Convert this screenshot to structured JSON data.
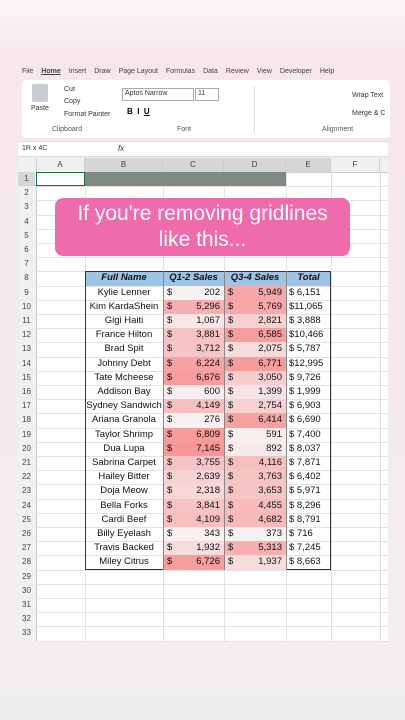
{
  "tabs": [
    "File",
    "Home",
    "Insert",
    "Draw",
    "Page Layout",
    "Formulas",
    "Data",
    "Review",
    "View",
    "Developer",
    "Help"
  ],
  "ribbon": {
    "paste": "Paste",
    "cut": "Cut",
    "copy": "Copy",
    "format_painter": "Format Painter",
    "clipboard": "Clipboard",
    "font_name": "Aptos Narrow",
    "font_size": "11",
    "font": "Font",
    "wrap_text": "Wrap Text",
    "merge": "Merge & C",
    "alignment": "Alignment"
  },
  "name_box": "1R x 4C",
  "fx": "fx",
  "columns": [
    "A",
    "B",
    "C",
    "D",
    "E",
    "F"
  ],
  "row_numbers": [
    1,
    2,
    3,
    4,
    5,
    6,
    7,
    8,
    9,
    10,
    11,
    12,
    13,
    14,
    15,
    16,
    17,
    18,
    19,
    20,
    21,
    22,
    23,
    24,
    25,
    26,
    27,
    28,
    29,
    30,
    31,
    32,
    33
  ],
  "overlay": {
    "lines": [
      "If you're removing gridlines",
      "like this..."
    ]
  },
  "table": {
    "header": [
      "Full Name",
      "Q1-2 Sales",
      "Q3-4 Sales",
      "Total"
    ],
    "currency": "$",
    "rows": [
      [
        "Kylie Lenner",
        "202",
        "5,949",
        "$ 6,151"
      ],
      [
        "Kim KardaShein",
        "5,296",
        "5,769",
        "$11,065"
      ],
      [
        "Gigi Haiti",
        "1,067",
        "2,821",
        "$ 3,888"
      ],
      [
        "France Hilton",
        "3,881",
        "6,585",
        "$10,466"
      ],
      [
        "Brad Spit",
        "3,712",
        "2,075",
        "$ 5,787"
      ],
      [
        "Johnny Debt",
        "6,224",
        "6,771",
        "$12,995"
      ],
      [
        "Tate Mcheese",
        "6,676",
        "3,050",
        "$ 9,726"
      ],
      [
        "Addison Bay",
        "600",
        "1,399",
        "$ 1,999"
      ],
      [
        "Sydney Sandwich",
        "4,149",
        "2,754",
        "$ 6,903"
      ],
      [
        "Ariana Granola",
        "276",
        "6,414",
        "$ 6,690"
      ],
      [
        "Taylor Shrimp",
        "6,809",
        "591",
        "$ 7,400"
      ],
      [
        "Dua Lupa",
        "7,145",
        "892",
        "$ 8,037"
      ],
      [
        "Sabrina Carpet",
        "3,755",
        "4,116",
        "$ 7,871"
      ],
      [
        "Hailey Bitter",
        "2,639",
        "3,763",
        "$ 6,402"
      ],
      [
        "Doja Meow",
        "2,318",
        "3,653",
        "$ 5,971"
      ],
      [
        "Bella Forks",
        "3,841",
        "4,455",
        "$ 8,296"
      ],
      [
        "Cardi Beef",
        "4,109",
        "4,682",
        "$ 8,791"
      ],
      [
        "Billy Eyelash",
        "343",
        "373",
        "$ 716"
      ],
      [
        "Travis Backed",
        "1,932",
        "5,313",
        "$ 7,245"
      ],
      [
        "Miley Citrus",
        "6,726",
        "1,937",
        "$ 8,663"
      ]
    ]
  }
}
